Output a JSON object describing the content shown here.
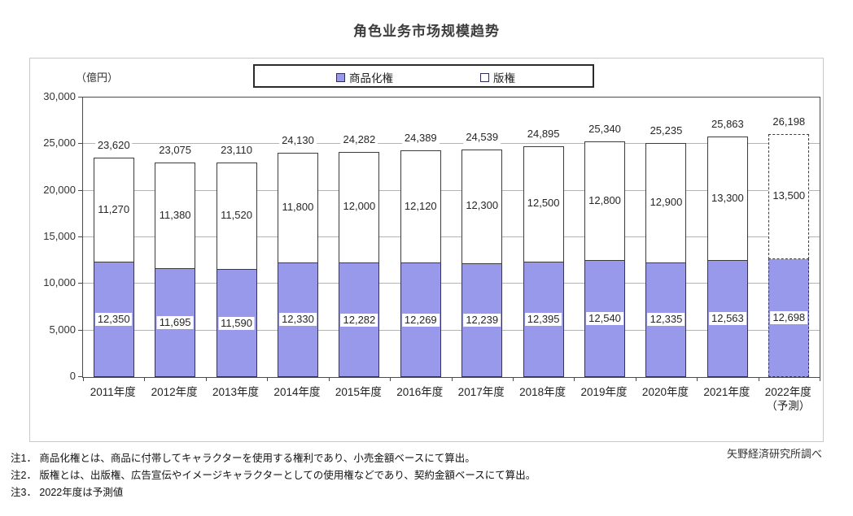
{
  "title": "角色业务市场规模趋势",
  "unit_label": "（億円）",
  "source": "矢野経済研究所調べ",
  "notes": [
    "注1．  商品化権とは、商品に付帯してキャラクターを使用する権利であり、小売金額ベースにて算出。",
    "注2．  版権とは、出版権、広告宣伝やイメージキャラクターとしての使用権などであり、契約金額ベースにて算出。",
    "注3．  2022年度は予測値"
  ],
  "colors": {
    "merchandising_fill": "#9999ec",
    "copyright_fill": "#ffffff",
    "bar_border": "#3c3c3c",
    "gridline": "#b4b4b4"
  },
  "chart_data": {
    "type": "bar",
    "stacked": true,
    "title": "角色业务市场规模趋势",
    "ylabel": "（億円）",
    "ylim": [
      0,
      30000
    ],
    "ytick_interval": 5000,
    "ytick_labels": [
      "0",
      "5,000",
      "10,000",
      "15,000",
      "20,000",
      "25,000",
      "30,000"
    ],
    "grid": true,
    "legend_position": "top",
    "categories": [
      "2011年度",
      "2012年度",
      "2013年度",
      "2014年度",
      "2015年度",
      "2016年度",
      "2017年度",
      "2018年度",
      "2019年度",
      "2020年度",
      "2021年度",
      "2022年度"
    ],
    "last_category_sublabel": "（予測）",
    "forecast_index": 11,
    "series": [
      {
        "name": "商品化権",
        "color": "#9999ec",
        "values": [
          12350,
          11695,
          11590,
          12330,
          12282,
          12269,
          12239,
          12395,
          12540,
          12335,
          12563,
          12698
        ]
      },
      {
        "name": "版権",
        "color": "#ffffff",
        "values": [
          11270,
          11380,
          11520,
          11800,
          12000,
          12120,
          12300,
          12500,
          12800,
          12900,
          13300,
          13500
        ]
      }
    ],
    "totals": [
      23620,
      23075,
      23110,
      24130,
      24282,
      24389,
      24539,
      24895,
      25340,
      25235,
      25863,
      26198
    ]
  }
}
